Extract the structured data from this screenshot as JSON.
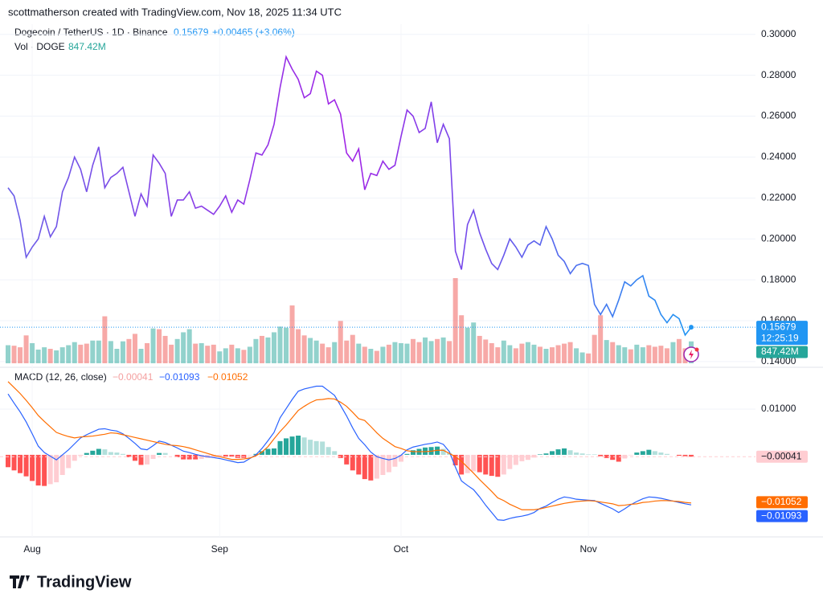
{
  "header": {
    "attribution": "scottmatherson created with TradingView.com, Nov 18, 2025 11:34 UTC",
    "brand": "TradingView"
  },
  "chart_data": {
    "type": "line",
    "title": "Dogecoin / TetherUS · 1D · Binance",
    "change": "+0.00465 (+3.06%)",
    "countdown": "12:25:19",
    "grid": true,
    "categories": [
      null,
      null,
      null,
      null,
      "Aug",
      null,
      null,
      null,
      null,
      null,
      null,
      null,
      null,
      null,
      null,
      null,
      null,
      null,
      null,
      null,
      null,
      null,
      null,
      null,
      null,
      null,
      null,
      null,
      null,
      null,
      null,
      null,
      null,
      null,
      null,
      "Sep",
      null,
      null,
      null,
      null,
      null,
      null,
      null,
      null,
      null,
      null,
      null,
      null,
      null,
      null,
      null,
      null,
      null,
      null,
      null,
      null,
      null,
      null,
      null,
      null,
      null,
      null,
      null,
      null,
      null,
      "Oct",
      null,
      null,
      null,
      null,
      null,
      null,
      null,
      null,
      null,
      null,
      null,
      null,
      null,
      null,
      null,
      null,
      null,
      null,
      null,
      null,
      null,
      null,
      null,
      null,
      null,
      null,
      null,
      null,
      null,
      null,
      "Nov",
      null,
      null,
      null,
      null,
      null,
      null,
      null,
      null,
      null,
      null,
      null,
      null,
      null,
      null,
      null,
      null,
      null
    ],
    "ylim": [
      0.138,
      0.305
    ],
    "yticks": [
      {
        "value": 0.14,
        "label": "0.14000"
      },
      {
        "value": 0.16,
        "label": "0.16000"
      },
      {
        "value": 0.18,
        "label": "0.18000"
      },
      {
        "value": 0.2,
        "label": "0.20000"
      },
      {
        "value": 0.22,
        "label": "0.22000"
      },
      {
        "value": 0.24,
        "label": "0.24000"
      },
      {
        "value": 0.26,
        "label": "0.26000"
      },
      {
        "value": 0.28,
        "label": "0.28000"
      },
      {
        "value": 0.3,
        "label": "0.30000"
      }
    ],
    "series": [
      {
        "name": "Dogecoin / TetherUS",
        "colors": [
          "#6a5ee8",
          "#a124e6",
          "#2196f3"
        ],
        "values": [
          0.225,
          0.221,
          0.209,
          0.191,
          0.196,
          0.2,
          0.211,
          0.201,
          0.206,
          0.223,
          0.23,
          0.24,
          0.234,
          0.223,
          0.236,
          0.245,
          0.225,
          0.23,
          0.232,
          0.235,
          0.223,
          0.211,
          0.222,
          0.216,
          0.241,
          0.237,
          0.232,
          0.211,
          0.219,
          0.219,
          0.223,
          0.215,
          0.216,
          0.214,
          0.212,
          0.216,
          0.221,
          0.213,
          0.219,
          0.217,
          0.229,
          0.242,
          0.241,
          0.246,
          0.256,
          0.274,
          0.289,
          0.283,
          0.278,
          0.269,
          0.271,
          0.282,
          0.28,
          0.266,
          0.268,
          0.261,
          0.242,
          0.238,
          0.244,
          0.224,
          0.232,
          0.231,
          0.238,
          0.234,
          0.236,
          0.25,
          0.263,
          0.26,
          0.252,
          0.254,
          0.267,
          0.247,
          0.256,
          0.249,
          0.194,
          0.185,
          0.207,
          0.214,
          0.203,
          0.195,
          0.188,
          0.185,
          0.192,
          0.2,
          0.196,
          0.191,
          0.197,
          0.199,
          0.197,
          0.206,
          0.2,
          0.192,
          0.189,
          0.183,
          0.187,
          0.188,
          0.187,
          0.168,
          0.163,
          0.168,
          0.162,
          0.17,
          0.179,
          0.177,
          0.18,
          0.182,
          0.172,
          0.17,
          0.163,
          0.159,
          0.163,
          0.161,
          0.153,
          0.15679
        ]
      }
    ],
    "volume": {
      "name": "Vol · DOGE",
      "last_label": "847.42M",
      "up_color": "#26a69a80",
      "down_color": "#ef535080",
      "badge_color": "#26a69a",
      "values": [
        700,
        680,
        620,
        1080,
        780,
        530,
        620,
        560,
        500,
        620,
        700,
        820,
        720,
        760,
        880,
        880,
        1820,
        860,
        560,
        850,
        940,
        1140,
        560,
        780,
        1350,
        1320,
        1060,
        720,
        940,
        1200,
        1320,
        760,
        780,
        680,
        720,
        460,
        580,
        720,
        580,
        520,
        640,
        940,
        1060,
        1000,
        1200,
        1420,
        1380,
        2240,
        1320,
        1080,
        980,
        880,
        760,
        620,
        820,
        1640,
        880,
        1100,
        760,
        640,
        560,
        480,
        640,
        720,
        820,
        780,
        760,
        940,
        820,
        1000,
        860,
        940,
        1000,
        860,
        3300,
        1860,
        1380,
        1580,
        1060,
        920,
        780,
        620,
        880,
        700,
        580,
        760,
        820,
        720,
        640,
        560,
        620,
        700,
        760,
        820,
        580,
        420,
        380,
        1100,
        1860,
        900,
        820,
        700,
        620,
        540,
        720,
        620,
        700,
        640,
        680,
        580,
        820,
        940,
        580,
        847.42
      ]
    },
    "macd": {
      "name": "MACD (12, 26, close)",
      "ylim": [
        -0.0174,
        0.0186
      ],
      "yticks": [
        {
          "value": 0.01,
          "label": "0.01000"
        }
      ],
      "histogram": {
        "last_label": "−0.00041",
        "colors": {
          "grow_above": "#26a69a",
          "fall_above": "#b2dfdb",
          "rise_below": "#ffcdd2",
          "fall_below": "#ff5252"
        },
        "values": [
          -0.0027,
          -0.0034,
          -0.004,
          -0.0047,
          -0.0057,
          -0.0067,
          -0.0068,
          -0.0064,
          -0.006,
          -0.0044,
          -0.0029,
          -0.0013,
          -0.0002,
          0.0004,
          0.0009,
          0.0013,
          0.0012,
          0.0006,
          0.0005,
          0.0002,
          -0.0005,
          -0.0013,
          -0.0022,
          -0.0021,
          -0.0009,
          0.0004,
          0.0004,
          0,
          -0.0005,
          -0.001,
          -0.001,
          -0.001,
          -0.0009,
          -0.0007,
          -0.0005,
          -0.0004,
          -0.0004,
          -0.0004,
          -0.0007,
          -0.0007,
          -0.0001,
          0.0002,
          0.0008,
          0.0013,
          0.0014,
          0.003,
          0.0036,
          0.004,
          0.0042,
          0.0038,
          0.0033,
          0.003,
          0.0029,
          0.0017,
          0.0008,
          -0.0007,
          -0.0021,
          -0.0034,
          -0.0043,
          -0.0053,
          -0.0056,
          -0.0052,
          -0.0044,
          -0.0038,
          -0.0026,
          -0.0015,
          0.0002,
          0.001,
          0.0013,
          0.0016,
          0.0017,
          0.0018,
          0.0013,
          0.0004,
          -0.0023,
          -0.0043,
          -0.004,
          -0.0036,
          -0.0038,
          -0.0043,
          -0.0046,
          -0.0048,
          -0.0043,
          -0.0031,
          -0.0022,
          -0.0014,
          -0.0011,
          -0.0006,
          0.0001,
          0.0003,
          0.0008,
          0.0012,
          0.0014,
          0.001,
          0.0005,
          0.0003,
          0.0001,
          0.0001,
          -0.0003,
          -0.0007,
          -0.0011,
          -0.0015,
          -0.0008,
          -0.0001,
          0.0005,
          0.0008,
          0.0011,
          0.0008,
          0.0005,
          0.0002,
          0,
          -0.0002,
          -0.0003,
          -0.00041
        ]
      },
      "macd": {
        "last_label": "−0.01093",
        "color": "#2962ff",
        "values": [
          0.0133,
          0.0113,
          0.0094,
          0.0072,
          0.0046,
          0.0019,
          0.0005,
          -0.0003,
          -0.0011,
          0,
          0.0011,
          0.0024,
          0.0037,
          0.0044,
          0.005,
          0.0056,
          0.0057,
          0.0054,
          0.0052,
          0.0046,
          0.0036,
          0.0025,
          0.0013,
          0.0011,
          0.002,
          0.003,
          0.0027,
          0.0021,
          0.0015,
          0.0008,
          0.0005,
          0.0001,
          -0.0002,
          -0.0004,
          -0.0006,
          -0.0008,
          -0.0011,
          -0.0014,
          -0.0017,
          -0.0016,
          -0.0008,
          0,
          0.0014,
          0.0031,
          0.0049,
          0.0081,
          0.0101,
          0.0121,
          0.0139,
          0.0144,
          0.0147,
          0.015,
          0.015,
          0.014,
          0.013,
          0.0108,
          0.0085,
          0.0059,
          0.0036,
          0.0022,
          0.0006,
          -0.0004,
          -0.0008,
          -0.0011,
          -0.0008,
          -0.0001,
          0.0011,
          0.0017,
          0.002,
          0.0023,
          0.0025,
          0.0028,
          0.0023,
          0.0007,
          -0.0027,
          -0.0057,
          -0.0067,
          -0.0076,
          -0.0092,
          -0.011,
          -0.0126,
          -0.0142,
          -0.0143,
          -0.0139,
          -0.0136,
          -0.0134,
          -0.0131,
          -0.0126,
          -0.0117,
          -0.0112,
          -0.0104,
          -0.0097,
          -0.0092,
          -0.0094,
          -0.0097,
          -0.0098,
          -0.0099,
          -0.01,
          -0.0106,
          -0.0112,
          -0.0118,
          -0.0126,
          -0.0118,
          -0.0109,
          -0.0102,
          -0.0096,
          -0.0092,
          -0.0093,
          -0.0095,
          -0.0098,
          -0.0101,
          -0.0104,
          -0.0107,
          -0.01093
        ]
      },
      "signal": {
        "last_label": "−0.01052",
        "color": "#ff6d00",
        "values": [
          0.016,
          0.0147,
          0.0134,
          0.0119,
          0.0103,
          0.0086,
          0.0073,
          0.0061,
          0.0049,
          0.0044,
          0.004,
          0.0037,
          0.0039,
          0.004,
          0.0041,
          0.0043,
          0.0045,
          0.0048,
          0.0047,
          0.0044,
          0.0041,
          0.0038,
          0.0035,
          0.0032,
          0.0029,
          0.0026,
          0.0023,
          0.0021,
          0.002,
          0.0018,
          0.0015,
          0.0011,
          0.0007,
          0.0003,
          -0.0001,
          -0.0004,
          -0.0007,
          -0.001,
          -0.001,
          -0.0009,
          -0.0007,
          -0.0002,
          0.0006,
          0.0018,
          0.0035,
          0.0051,
          0.0065,
          0.0081,
          0.0097,
          0.0106,
          0.0114,
          0.012,
          0.0121,
          0.0123,
          0.0122,
          0.0115,
          0.0106,
          0.0093,
          0.0079,
          0.0075,
          0.0062,
          0.0048,
          0.0036,
          0.0027,
          0.0018,
          0.0014,
          0.0009,
          0.0007,
          0.0007,
          0.0007,
          0.0008,
          0.001,
          0.001,
          0.0003,
          -0.0004,
          -0.0014,
          -0.0027,
          -0.004,
          -0.0054,
          -0.0067,
          -0.008,
          -0.0094,
          -0.01,
          -0.0108,
          -0.0114,
          -0.012,
          -0.012,
          -0.012,
          -0.0118,
          -0.0115,
          -0.0112,
          -0.0109,
          -0.0106,
          -0.0104,
          -0.0102,
          -0.0101,
          -0.01,
          -0.0101,
          -0.0103,
          -0.0105,
          -0.0107,
          -0.0111,
          -0.011,
          -0.0108,
          -0.0107,
          -0.0104,
          -0.0103,
          -0.0101,
          -0.01,
          -0.01,
          -0.0101,
          -0.0102,
          -0.0104,
          -0.01052
        ]
      }
    }
  }
}
